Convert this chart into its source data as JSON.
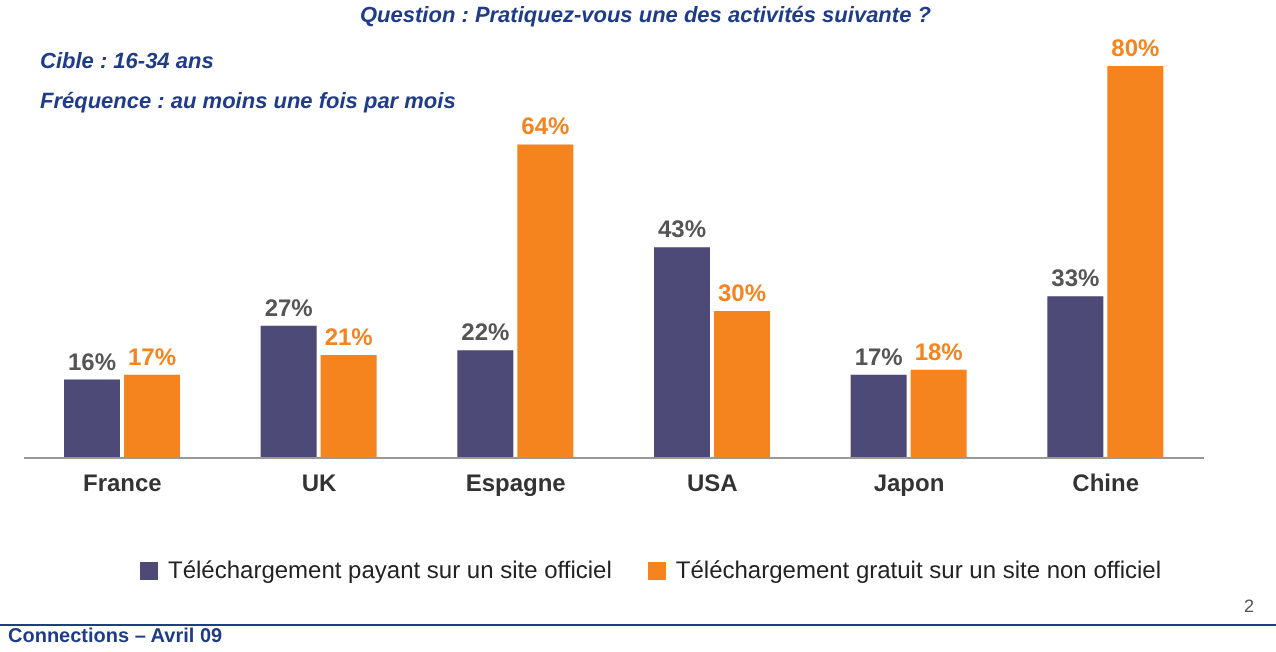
{
  "chart_data": {
    "type": "bar",
    "title": "Question : Pratiquez-vous une des activités suivante ?",
    "subtitle": "Cible : 16-34 ans",
    "annotations": [
      "Fréquence : au moins une fois par mois",
      "Connections – Avril 09",
      "2"
    ],
    "categories": [
      "France",
      "UK",
      "Espagne",
      "USA",
      "Japon",
      "Chine"
    ],
    "series": [
      {
        "name": "Téléchargement payant sur un site officiel",
        "color": "#4e4a78",
        "values": [
          16,
          27,
          22,
          43,
          17,
          33
        ],
        "value_labels": [
          "16%",
          "27%",
          "22%",
          "43%",
          "17%",
          "33%"
        ]
      },
      {
        "name": "Téléchargement gratuit sur un site non officiel",
        "color": "#f5841f",
        "values": [
          17,
          21,
          64,
          30,
          18,
          80
        ],
        "value_labels": [
          "17%",
          "21%",
          "64%",
          "30%",
          "18%",
          "80%"
        ]
      }
    ],
    "legend": "bottom"
  }
}
